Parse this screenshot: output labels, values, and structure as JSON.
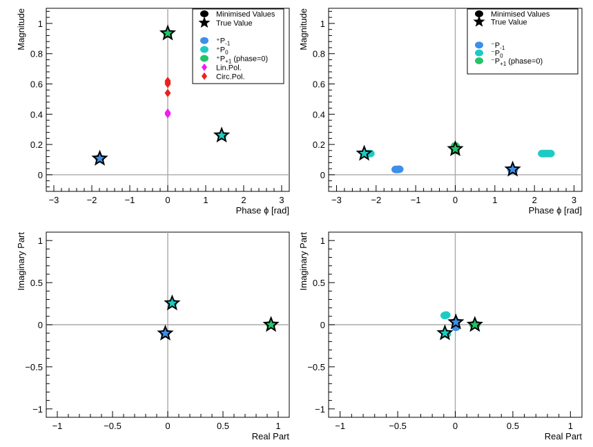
{
  "colors": {
    "P_minus1": "#3d8fe8",
    "P_0": "#1ecbc3",
    "P_plus1": "#23c46a",
    "lin_pol": "#f01df0",
    "circ_pol": "#e8231c",
    "reference_line": "#a9a9a9"
  },
  "chart_data": [
    {
      "type": "scatter",
      "id": "top-left",
      "title": "",
      "xlabel": "Phase ϕ [rad]",
      "ylabel": "Magnitude",
      "xlim": [
        -3.2,
        3.2
      ],
      "ylim": [
        -0.11,
        1.1
      ],
      "xticks": [
        -3,
        -2,
        -1,
        0,
        1,
        2,
        3
      ],
      "yticks": [
        0,
        0.2,
        0.4,
        0.6,
        0.8,
        1
      ],
      "xtick_labels": [
        "−3",
        "−2",
        "−1",
        "0",
        "1",
        "2",
        "3"
      ],
      "ytick_labels": [
        "0",
        "0.2",
        "0.4",
        "0.6",
        "0.8",
        "1"
      ],
      "grid": false,
      "legend": {
        "placement": "top-right",
        "entries": [
          {
            "label": "Minimised Values",
            "marker": "circle",
            "color": "#000000"
          },
          {
            "label": "True Value",
            "marker": "star",
            "color": "#000000"
          },
          {
            "label": "",
            "marker": "none",
            "color": ""
          },
          {
            "label": "⁺P",
            "sub": "-1",
            "suffix": "",
            "marker": "circle",
            "color": "#3d8fe8"
          },
          {
            "label": "⁺P",
            "sub": "0",
            "suffix": "",
            "marker": "circle",
            "color": "#1ecbc3"
          },
          {
            "label": "⁺P",
            "sub": "+1",
            "suffix": " (phase=0)",
            "marker": "circle",
            "color": "#23c46a"
          },
          {
            "label": "Lin.Pol.",
            "marker": "diamond",
            "color": "#f01df0"
          },
          {
            "label": "Circ.Pol.",
            "marker": "diamond",
            "color": "#e8231c"
          }
        ]
      },
      "series": [
        {
          "name": "P-1 minimised",
          "marker": "circle",
          "color": "#3d8fe8",
          "points": [
            [
              -1.8,
              0.11
            ],
            [
              -1.79,
              0.105
            ]
          ]
        },
        {
          "name": "P0 minimised",
          "marker": "circle",
          "color": "#1ecbc3",
          "points": [
            [
              1.42,
              0.26
            ],
            [
              1.43,
              0.255
            ]
          ]
        },
        {
          "name": "P+1 minimised",
          "marker": "circle",
          "color": "#23c46a",
          "points": [
            [
              0.0,
              0.935
            ],
            [
              0.0,
              0.93
            ]
          ]
        },
        {
          "name": "Lin.Pol.",
          "marker": "diamond",
          "color": "#f01df0",
          "points": [
            [
              0.0,
              0.4
            ],
            [
              0.0,
              0.41
            ]
          ]
        },
        {
          "name": "Circ.Pol.",
          "marker": "diamond",
          "color": "#e8231c",
          "points": [
            [
              0.0,
              0.54
            ],
            [
              0.0,
              0.6
            ],
            [
              0.0,
              0.61
            ],
            [
              0.0,
              0.62
            ]
          ]
        },
        {
          "name": "True Value P-1",
          "marker": "star",
          "color": "#3d8fe8",
          "points": [
            [
              -1.79,
              0.107
            ]
          ]
        },
        {
          "name": "True Value P0",
          "marker": "star",
          "color": "#1ecbc3",
          "points": [
            [
              1.42,
              0.26
            ]
          ]
        },
        {
          "name": "True Value P+1",
          "marker": "star",
          "color": "#23c46a",
          "points": [
            [
              0.0,
              0.935
            ]
          ]
        }
      ]
    },
    {
      "type": "scatter",
      "id": "top-right",
      "title": "",
      "xlabel": "Phase ϕ [rad]",
      "ylabel": "Magnitude",
      "xlim": [
        -3.2,
        3.2
      ],
      "ylim": [
        -0.11,
        1.1
      ],
      "xticks": [
        -3,
        -2,
        -1,
        0,
        1,
        2,
        3
      ],
      "yticks": [
        0,
        0.2,
        0.4,
        0.6,
        0.8,
        1
      ],
      "xtick_labels": [
        "−3",
        "−2",
        "−1",
        "0",
        "1",
        "2",
        "3"
      ],
      "ytick_labels": [
        "0",
        "0.2",
        "0.4",
        "0.6",
        "0.8",
        "1"
      ],
      "grid": false,
      "legend": {
        "placement": "top-right",
        "entries": [
          {
            "label": "Minimised Values",
            "marker": "circle",
            "color": "#000000"
          },
          {
            "label": "True Value",
            "marker": "star",
            "color": "#000000"
          },
          {
            "label": "",
            "marker": "none",
            "color": ""
          },
          {
            "label": "⁻P",
            "sub": "-1",
            "suffix": "",
            "marker": "circle",
            "color": "#3d8fe8"
          },
          {
            "label": "⁻P",
            "sub": "0",
            "suffix": "",
            "marker": "circle",
            "color": "#1ecbc3"
          },
          {
            "label": "⁻P",
            "sub": "+1",
            "suffix": " (phase=0)",
            "marker": "circle",
            "color": "#23c46a"
          }
        ]
      },
      "series": [
        {
          "name": "P-1 minimised",
          "marker": "circle",
          "color": "#3d8fe8",
          "points": [
            [
              -1.5,
              0.035
            ],
            [
              -1.45,
              0.035
            ],
            [
              -1.42,
              0.036
            ],
            [
              1.43,
              0.03
            ],
            [
              1.45,
              0.035
            ],
            [
              1.47,
              0.03
            ]
          ]
        },
        {
          "name": "P0 minimised",
          "marker": "circle",
          "color": "#1ecbc3",
          "points": [
            [
              -2.2,
              0.14
            ],
            [
              -2.15,
              0.14
            ],
            [
              2.2,
              0.14
            ],
            [
              2.25,
              0.14
            ],
            [
              2.3,
              0.14
            ],
            [
              2.35,
              0.14
            ],
            [
              2.4,
              0.14
            ]
          ]
        },
        {
          "name": "P+1 minimised",
          "marker": "circle",
          "color": "#23c46a",
          "points": [
            [
              0.0,
              0.19
            ],
            [
              0.0,
              0.18
            ],
            [
              0.0,
              0.17
            ],
            [
              0.0,
              0.16
            ]
          ]
        },
        {
          "name": "True Value P0",
          "marker": "star",
          "color": "#1ecbc3",
          "points": [
            [
              -2.3,
              0.14
            ]
          ]
        },
        {
          "name": "True Value P+1",
          "marker": "star",
          "color": "#23c46a",
          "points": [
            [
              0.0,
              0.17
            ]
          ]
        },
        {
          "name": "True Value P-1",
          "marker": "star",
          "color": "#3d8fe8",
          "points": [
            [
              1.45,
              0.035
            ]
          ]
        }
      ]
    },
    {
      "type": "scatter",
      "id": "bottom-left",
      "title": "",
      "xlabel": "Real Part",
      "ylabel": "Imaginary Part",
      "xlim": [
        -1.1,
        1.1
      ],
      "ylim": [
        -1.1,
        1.1
      ],
      "xticks": [
        -1,
        -0.5,
        0,
        0.5,
        1
      ],
      "yticks": [
        -1,
        -0.5,
        0,
        0.5,
        1
      ],
      "xtick_labels": [
        "−1",
        "−0.5",
        "0",
        "0.5",
        "1"
      ],
      "ytick_labels": [
        "−1",
        "−0.5",
        "0",
        "0.5",
        "1"
      ],
      "grid": false,
      "series": [
        {
          "name": "P-1 minimised",
          "marker": "circle",
          "color": "#3d8fe8",
          "points": [
            [
              -0.025,
              -0.105
            ],
            [
              -0.02,
              -0.1
            ]
          ]
        },
        {
          "name": "P0 minimised",
          "marker": "circle",
          "color": "#1ecbc3",
          "points": [
            [
              0.04,
              0.26
            ],
            [
              0.045,
              0.255
            ]
          ]
        },
        {
          "name": "P+1 minimised",
          "marker": "circle",
          "color": "#23c46a",
          "points": [
            [
              0.935,
              0.0
            ],
            [
              0.93,
              0.0
            ]
          ]
        },
        {
          "name": "True Value P-1",
          "marker": "star",
          "color": "#3d8fe8",
          "points": [
            [
              -0.022,
              -0.103
            ]
          ]
        },
        {
          "name": "True Value P0",
          "marker": "star",
          "color": "#1ecbc3",
          "points": [
            [
              0.04,
              0.255
            ]
          ]
        },
        {
          "name": "True Value P+1",
          "marker": "star",
          "color": "#23c46a",
          "points": [
            [
              0.935,
              0.0
            ]
          ]
        }
      ]
    },
    {
      "type": "scatter",
      "id": "bottom-right",
      "title": "",
      "xlabel": "Real Part",
      "ylabel": "Imaginary Part",
      "xlim": [
        -1.1,
        1.1
      ],
      "ylim": [
        -1.1,
        1.1
      ],
      "xticks": [
        -1,
        -0.5,
        0,
        0.5,
        1
      ],
      "yticks": [
        -1,
        -0.5,
        0,
        0.5,
        1
      ],
      "xtick_labels": [
        "−1",
        "−0.5",
        "0",
        "0.5",
        "1"
      ],
      "ytick_labels": [
        "−1",
        "−0.5",
        "0",
        "0.5",
        "1"
      ],
      "grid": false,
      "series": [
        {
          "name": "P-1 minimised",
          "marker": "circle",
          "color": "#3d8fe8",
          "points": [
            [
              0.005,
              -0.03
            ],
            [
              0.003,
              0.035
            ],
            [
              0.005,
              0.03
            ]
          ]
        },
        {
          "name": "P0 minimised",
          "marker": "circle",
          "color": "#1ecbc3",
          "points": [
            [
              -0.09,
              0.11
            ],
            [
              -0.08,
              0.115
            ],
            [
              -0.085,
              -0.1
            ],
            [
              -0.075,
              -0.11
            ]
          ]
        },
        {
          "name": "P+1 minimised",
          "marker": "circle",
          "color": "#23c46a",
          "points": [
            [
              0.18,
              0.0
            ],
            [
              0.17,
              0.0
            ],
            [
              0.16,
              0.0
            ]
          ]
        },
        {
          "name": "True Value P0",
          "marker": "star",
          "color": "#1ecbc3",
          "points": [
            [
              -0.09,
              -0.1
            ]
          ]
        },
        {
          "name": "True Value P-1",
          "marker": "star",
          "color": "#3d8fe8",
          "points": [
            [
              0.005,
              0.03
            ]
          ]
        },
        {
          "name": "True Value P+1",
          "marker": "star",
          "color": "#23c46a",
          "points": [
            [
              0.17,
              0.0
            ]
          ]
        }
      ]
    }
  ]
}
